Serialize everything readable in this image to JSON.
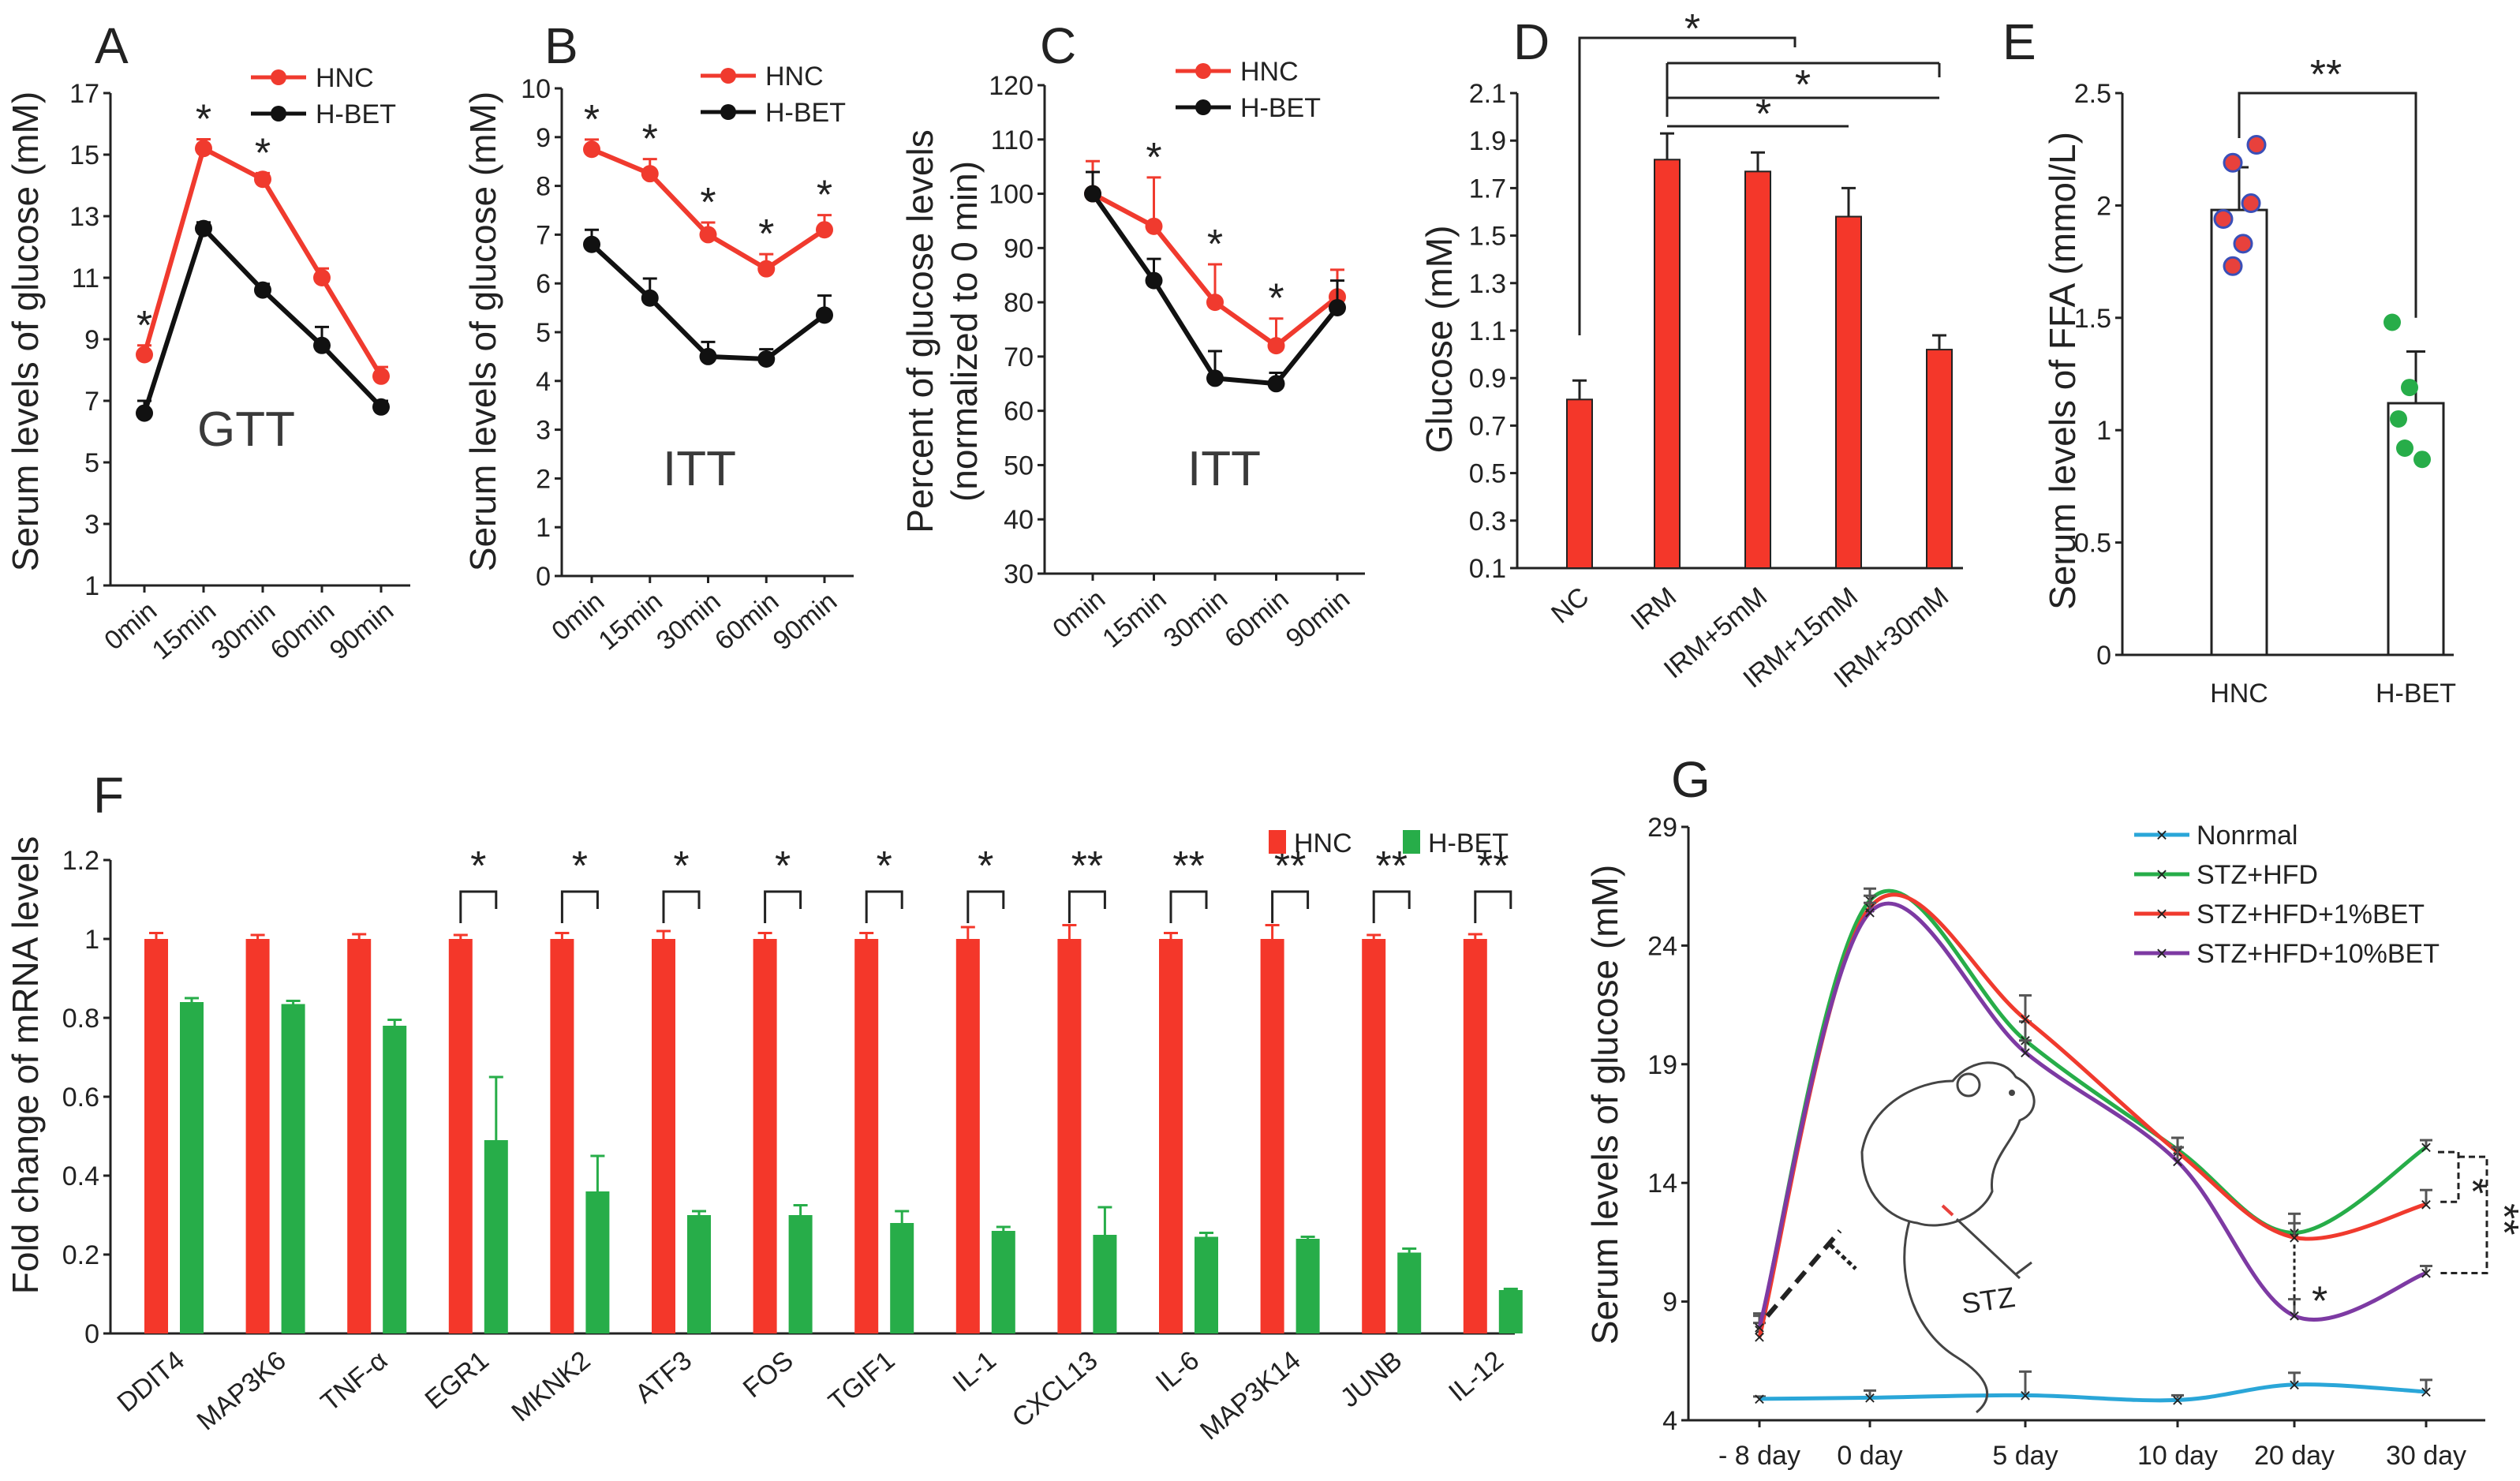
{
  "colors": {
    "red": "#f03a2e",
    "black": "#111111",
    "green": "#27ad49",
    "blue": "#2aa6d8",
    "purple": "#7d3aa3",
    "bar_red": "#f4372a"
  },
  "chart_data": [
    {
      "id": "A",
      "type": "line",
      "panel_label": "A",
      "inner_label": "GTT",
      "ylabel": "Serum levels of glucose (mM)",
      "ylim": [
        1,
        17
      ],
      "yticks": [
        "1",
        "3",
        "5",
        "7",
        "9",
        "11",
        "13",
        "15",
        "17"
      ],
      "categories": [
        "0min",
        "15min",
        "30min",
        "60min",
        "90min"
      ],
      "series": [
        {
          "name": "HNC",
          "color": "#f03a2e",
          "values": [
            8.5,
            15.2,
            14.2,
            11.0,
            7.8
          ],
          "errors": [
            0.3,
            0.3,
            0.2,
            0.3,
            0.3
          ]
        },
        {
          "name": "H-BET",
          "color": "#111111",
          "values": [
            6.6,
            12.6,
            10.6,
            8.8,
            6.8
          ],
          "errors": [
            0.4,
            0.2,
            0.2,
            0.6,
            0.2
          ]
        }
      ],
      "stars": [
        "*",
        "*",
        "*",
        "",
        ""
      ]
    },
    {
      "id": "B",
      "type": "line",
      "panel_label": "B",
      "inner_label": "ITT",
      "ylabel": "Serum levels of glucose (mM)",
      "ylim": [
        0,
        10
      ],
      "yticks": [
        "0",
        "1",
        "2",
        "3",
        "4",
        "5",
        "6",
        "7",
        "8",
        "9",
        "10"
      ],
      "categories": [
        "0min",
        "15min",
        "30min",
        "60min",
        "90min"
      ],
      "series": [
        {
          "name": "HNC",
          "color": "#f03a2e",
          "values": [
            8.75,
            8.25,
            7.0,
            6.3,
            7.1
          ],
          "errors": [
            0.2,
            0.3,
            0.25,
            0.3,
            0.3
          ]
        },
        {
          "name": "H-BET",
          "color": "#111111",
          "values": [
            6.8,
            5.7,
            4.5,
            4.45,
            5.35
          ],
          "errors": [
            0.3,
            0.4,
            0.3,
            0.2,
            0.4
          ]
        }
      ],
      "stars": [
        "*",
        "*",
        "*",
        "*",
        "*"
      ]
    },
    {
      "id": "C",
      "type": "line",
      "panel_label": "C",
      "inner_label": "ITT",
      "ylabel": "Percent of glucose levels (normalized to 0 min)",
      "ylabel_lines": [
        "Percent of glucose levels",
        "(normalized to 0 min)"
      ],
      "ylim": [
        30,
        120
      ],
      "yticks": [
        "30",
        "40",
        "50",
        "60",
        "70",
        "80",
        "90",
        "100",
        "110",
        "120"
      ],
      "categories": [
        "0min",
        "15min",
        "30min",
        "60min",
        "90min"
      ],
      "series": [
        {
          "name": "HNC",
          "color": "#f03a2e",
          "values": [
            100,
            94,
            80,
            72,
            81
          ],
          "errors": [
            6,
            9,
            7,
            5,
            5
          ]
        },
        {
          "name": "H-BET",
          "color": "#111111",
          "values": [
            100,
            84,
            66,
            65,
            79
          ],
          "errors": [
            4,
            4,
            5,
            2,
            5
          ]
        }
      ],
      "stars": [
        "",
        "*",
        "*",
        "*",
        ""
      ]
    },
    {
      "id": "D",
      "type": "bar",
      "panel_label": "D",
      "ylabel": "Glucose (mM)",
      "ylim": [
        0.1,
        2.1
      ],
      "yticks": [
        "0.1",
        "0.3",
        "0.5",
        "0.7",
        "0.9",
        "1.1",
        "1.3",
        "1.5",
        "1.7",
        "1.9",
        "2.1"
      ],
      "categories": [
        "NC",
        "IRM",
        "IRM+5mM",
        "IRM+15mM",
        "IRM+30mM"
      ],
      "values": [
        0.81,
        1.82,
        1.77,
        1.58,
        1.02
      ],
      "errors": [
        0.08,
        0.11,
        0.08,
        0.12,
        0.06
      ],
      "stars": [
        "*",
        "*",
        "*"
      ]
    },
    {
      "id": "E",
      "type": "bar",
      "panel_label": "E",
      "ylabel": "Serum levels of FFA (mmol/L)",
      "ylim": [
        0,
        2.5
      ],
      "yticks": [
        "0",
        "0.5",
        "1",
        "1.5",
        "2",
        "2.5"
      ],
      "categories": [
        "HNC",
        "H-BET"
      ],
      "values": [
        1.98,
        1.12
      ],
      "errors": [
        0.19,
        0.23
      ],
      "points": [
        [
          2.27,
          2.19,
          2.01,
          1.94,
          1.83,
          1.73
        ],
        [
          1.48,
          1.19,
          1.05,
          0.92,
          0.87
        ]
      ],
      "point_colors": [
        "#e8413c",
        "#27ad49"
      ],
      "stars": [
        "**"
      ]
    },
    {
      "id": "F",
      "type": "bar",
      "panel_label": "F",
      "ylabel": "Fold change of mRNA levels",
      "ylim": [
        0,
        1.2
      ],
      "yticks": [
        "0",
        "0.2",
        "0.4",
        "0.6",
        "0.8",
        "1",
        "1.2"
      ],
      "categories": [
        "DDIT4",
        "MAP3K6",
        "TNF-α",
        "EGR1",
        "MKNK2",
        "ATF3",
        "FOS",
        "TGIF1",
        "IL-1",
        "CXCL13",
        "IL-6",
        "MAP3K14",
        "JUNB",
        "IL-12"
      ],
      "series": [
        {
          "name": "HNC",
          "color": "#f4372a",
          "values": [
            1,
            1,
            1,
            1,
            1,
            1,
            1,
            1,
            1,
            1,
            1,
            1,
            1,
            1
          ],
          "errors": [
            0.015,
            0.01,
            0.012,
            0.01,
            0.015,
            0.02,
            0.015,
            0.015,
            0.03,
            0.035,
            0.015,
            0.035,
            0.01,
            0.012
          ]
        },
        {
          "name": "H-BET",
          "color": "#27ad49",
          "values": [
            0.84,
            0.835,
            0.78,
            0.49,
            0.36,
            0.3,
            0.3,
            0.28,
            0.26,
            0.25,
            0.245,
            0.24,
            0.205,
            0.11
          ],
          "errors": [
            0.01,
            0.008,
            0.015,
            0.16,
            0.09,
            0.01,
            0.025,
            0.03,
            0.01,
            0.07,
            0.01,
            0.005,
            0.01,
            0.003
          ]
        }
      ],
      "stars": [
        "",
        "",
        "",
        "*",
        "*",
        "*",
        "*",
        "*",
        "*",
        "**",
        "**",
        "**",
        "**",
        "**"
      ]
    },
    {
      "id": "G",
      "type": "line",
      "panel_label": "G",
      "ylabel": "Serum levels of glucose (mM)",
      "ylim": [
        4,
        29
      ],
      "yticks": [
        "4",
        "9",
        "14",
        "19",
        "24",
        "29"
      ],
      "categories": [
        "- 8 day",
        "0 day",
        "5 day",
        "10 day",
        "20 day",
        "30 day"
      ],
      "series": [
        {
          "name": "Nonrmal",
          "color": "#2aa6d8",
          "values": [
            4.9,
            4.95,
            5.05,
            4.85,
            5.5,
            5.2
          ],
          "errors": [
            0.1,
            0.3,
            1.0,
            0.2,
            0.5,
            0.5
          ]
        },
        {
          "name": "STZ+HFD",
          "color": "#27ad49",
          "values": [
            7.8,
            25.9,
            20.0,
            15.4,
            11.9,
            15.5
          ],
          "errors": [
            0.6,
            0.5,
            0.8,
            0.5,
            0.8,
            0.3
          ]
        },
        {
          "name": "STZ+HFD+1%BET",
          "color": "#f03a2e",
          "values": [
            7.5,
            25.6,
            20.9,
            15.3,
            11.7,
            13.1
          ],
          "errors": [
            0.6,
            0.5,
            1.0,
            0.6,
            0.6,
            0.6
          ]
        },
        {
          "name": "STZ+HFD+10%BET",
          "color": "#7d3aa3",
          "values": [
            7.9,
            25.4,
            19.5,
            14.9,
            8.4,
            10.2
          ],
          "errors": [
            0.6,
            0.4,
            0.5,
            0.6,
            0.7,
            0.3
          ]
        }
      ],
      "stars": [
        "*",
        "*",
        "**"
      ],
      "annotation": "STZ"
    }
  ]
}
